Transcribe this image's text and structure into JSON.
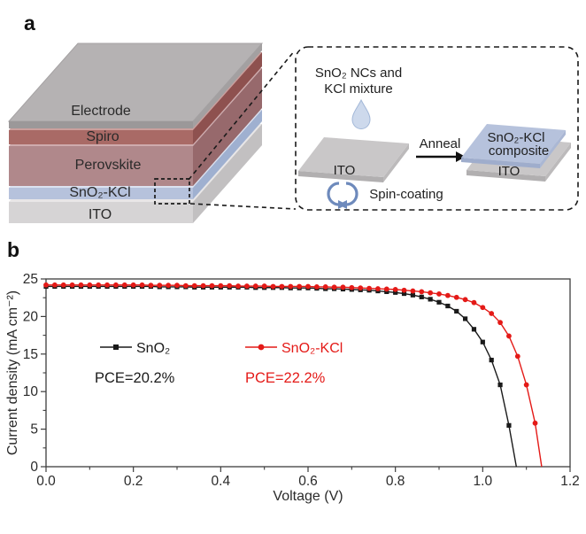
{
  "panels": {
    "a": "a",
    "b": "b"
  },
  "device_stack": {
    "label_color": "#2a2a2a",
    "layers": [
      {
        "label": "Electrode",
        "top": "#b5b2b3",
        "side": "#a3a0a1",
        "front": "#9b9899"
      },
      {
        "label": "Spiro",
        "top": "#cb9f9d",
        "side": "#8e514f",
        "front": "#a96a66"
      },
      {
        "label": "Perovskite",
        "top": "#cfabad",
        "side": "#97696c",
        "front": "#b0888b"
      },
      {
        "label": "SnO₂-KCl",
        "top": "#dce2f0",
        "side": "#9fb0d0",
        "front": "#b6c2dc"
      },
      {
        "label": "ITO",
        "top": "#e8e6e7",
        "side": "#c2c0c1",
        "front": "#d6d4d5"
      }
    ]
  },
  "process_inset": {
    "mixture_line1": "SnO₂ NCs and",
    "mixture_line2": "KCl mixture",
    "substrate_label": "ITO",
    "spin_label": "Spin-coating",
    "anneal_label": "Anneal",
    "result_line1": "SnO₂-KCl",
    "result_line2": "composite",
    "result_substrate_label": "ITO",
    "text_color": "#1f1f1f",
    "droplet_fill": "#cdd9ec",
    "droplet_stroke": "#a3b8d8",
    "spin_arrow_color": "#6e8abc",
    "plate_gray_top": "#c9c7c8",
    "plate_gray_front": "#b1afb0",
    "plate_gray_side": "#bcbabb",
    "plate_blue_top": "#b6c2dc",
    "plate_blue_front": "#9fadcc",
    "plate_blue_side": "#aab7d4"
  },
  "chart_data": {
    "type": "line",
    "title": "",
    "xlabel": "Voltage (V)",
    "ylabel": "Current density (mA cm⁻²)",
    "xlim": [
      0,
      1.2
    ],
    "ylim": [
      0,
      25
    ],
    "xticks": [
      0,
      0.2,
      0.4,
      0.6,
      0.8,
      1.0,
      1.2
    ],
    "xtick_labels": [
      "0.0",
      "0.2",
      "0.4",
      "0.6",
      "0.8",
      "1.0",
      "1.2"
    ],
    "x_minor": [
      0.1,
      0.3,
      0.5,
      0.7,
      0.9,
      1.1
    ],
    "yticks": [
      0,
      5,
      10,
      15,
      20,
      25
    ],
    "ytick_labels": [
      "0",
      "5",
      "10",
      "15",
      "20",
      "25"
    ],
    "y_minor": [
      2.5,
      7.5,
      12.5,
      17.5,
      22.5
    ],
    "axis_color": "#3d3d3d",
    "text_color": "#2a2a2a",
    "grid": false,
    "legend_position": "inside-left",
    "series": [
      {
        "name": "SnO₂",
        "pce": "PCE=20.2%",
        "color": "#1a1a1a",
        "marker": "square",
        "points": [
          [
            0.0,
            24.0
          ],
          [
            0.02,
            24.0
          ],
          [
            0.04,
            24.0
          ],
          [
            0.06,
            24.0
          ],
          [
            0.08,
            24.0
          ],
          [
            0.1,
            24.0
          ],
          [
            0.12,
            24.0
          ],
          [
            0.14,
            24.0
          ],
          [
            0.16,
            24.0
          ],
          [
            0.18,
            24.0
          ],
          [
            0.2,
            24.0
          ],
          [
            0.22,
            24.0
          ],
          [
            0.24,
            24.0
          ],
          [
            0.26,
            23.95
          ],
          [
            0.28,
            23.95
          ],
          [
            0.3,
            23.95
          ],
          [
            0.32,
            23.95
          ],
          [
            0.34,
            23.9
          ],
          [
            0.36,
            23.9
          ],
          [
            0.38,
            23.9
          ],
          [
            0.4,
            23.9
          ],
          [
            0.42,
            23.9
          ],
          [
            0.44,
            23.9
          ],
          [
            0.46,
            23.9
          ],
          [
            0.48,
            23.85
          ],
          [
            0.5,
            23.85
          ],
          [
            0.52,
            23.85
          ],
          [
            0.54,
            23.85
          ],
          [
            0.56,
            23.8
          ],
          [
            0.58,
            23.8
          ],
          [
            0.6,
            23.8
          ],
          [
            0.62,
            23.75
          ],
          [
            0.64,
            23.7
          ],
          [
            0.66,
            23.7
          ],
          [
            0.68,
            23.65
          ],
          [
            0.7,
            23.6
          ],
          [
            0.72,
            23.55
          ],
          [
            0.74,
            23.5
          ],
          [
            0.76,
            23.4
          ],
          [
            0.78,
            23.3
          ],
          [
            0.8,
            23.2
          ],
          [
            0.82,
            23.05
          ],
          [
            0.84,
            22.85
          ],
          [
            0.86,
            22.6
          ],
          [
            0.88,
            22.3
          ],
          [
            0.9,
            21.9
          ],
          [
            0.92,
            21.4
          ],
          [
            0.94,
            20.7
          ],
          [
            0.96,
            19.7
          ],
          [
            0.98,
            18.3
          ],
          [
            1.0,
            16.6
          ],
          [
            1.02,
            14.2
          ],
          [
            1.04,
            10.9
          ],
          [
            1.06,
            5.5
          ],
          [
            1.077,
            0
          ]
        ]
      },
      {
        "name": "SnO₂-KCl",
        "pce": "PCE=22.2%",
        "color": "#e41a17",
        "marker": "circle",
        "points": [
          [
            0.0,
            24.2
          ],
          [
            0.02,
            24.2
          ],
          [
            0.04,
            24.2
          ],
          [
            0.06,
            24.2
          ],
          [
            0.08,
            24.2
          ],
          [
            0.1,
            24.2
          ],
          [
            0.12,
            24.2
          ],
          [
            0.14,
            24.2
          ],
          [
            0.16,
            24.2
          ],
          [
            0.18,
            24.2
          ],
          [
            0.2,
            24.2
          ],
          [
            0.22,
            24.2
          ],
          [
            0.24,
            24.15
          ],
          [
            0.26,
            24.15
          ],
          [
            0.28,
            24.15
          ],
          [
            0.3,
            24.15
          ],
          [
            0.32,
            24.1
          ],
          [
            0.34,
            24.1
          ],
          [
            0.36,
            24.1
          ],
          [
            0.38,
            24.1
          ],
          [
            0.4,
            24.1
          ],
          [
            0.42,
            24.1
          ],
          [
            0.44,
            24.05
          ],
          [
            0.46,
            24.05
          ],
          [
            0.48,
            24.05
          ],
          [
            0.5,
            24.05
          ],
          [
            0.52,
            24.0
          ],
          [
            0.54,
            24.0
          ],
          [
            0.56,
            24.0
          ],
          [
            0.58,
            24.0
          ],
          [
            0.6,
            24.0
          ],
          [
            0.62,
            23.95
          ],
          [
            0.64,
            23.95
          ],
          [
            0.66,
            23.9
          ],
          [
            0.68,
            23.9
          ],
          [
            0.7,
            23.85
          ],
          [
            0.72,
            23.8
          ],
          [
            0.74,
            23.75
          ],
          [
            0.76,
            23.7
          ],
          [
            0.78,
            23.65
          ],
          [
            0.8,
            23.6
          ],
          [
            0.82,
            23.5
          ],
          [
            0.84,
            23.4
          ],
          [
            0.86,
            23.3
          ],
          [
            0.88,
            23.15
          ],
          [
            0.9,
            23.0
          ],
          [
            0.92,
            22.8
          ],
          [
            0.94,
            22.55
          ],
          [
            0.96,
            22.25
          ],
          [
            0.98,
            21.85
          ],
          [
            1.0,
            21.2
          ],
          [
            1.02,
            20.4
          ],
          [
            1.04,
            19.2
          ],
          [
            1.06,
            17.4
          ],
          [
            1.08,
            14.7
          ],
          [
            1.1,
            10.9
          ],
          [
            1.12,
            5.8
          ],
          [
            1.135,
            0
          ]
        ]
      }
    ]
  }
}
